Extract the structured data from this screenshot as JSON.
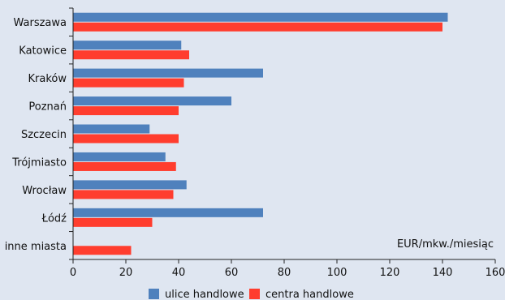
{
  "chart_data": {
    "type": "bar",
    "orientation": "horizontal",
    "categories": [
      "Warszawa",
      "Katowice",
      "Kraków",
      "Poznań",
      "Szczecin",
      "Trójmiasto",
      "Wrocław",
      "Łódź",
      "inne miasta"
    ],
    "series": [
      {
        "name": "ulice handlowe",
        "color": "#4f81bd",
        "values": [
          142,
          41,
          72,
          60,
          29,
          35,
          43,
          72,
          null
        ]
      },
      {
        "name": "centra handlowe",
        "color": "#ff3d2e",
        "values": [
          140,
          44,
          42,
          40,
          40,
          39,
          38,
          30,
          22
        ]
      }
    ],
    "unit_note": "EUR/mkw./miesiąc",
    "xlim": [
      0,
      160
    ],
    "xticks": [
      0,
      20,
      40,
      60,
      80,
      100,
      120,
      140,
      160
    ],
    "grid": false,
    "legend_position": "bottom",
    "background": "#dfe6f1"
  }
}
